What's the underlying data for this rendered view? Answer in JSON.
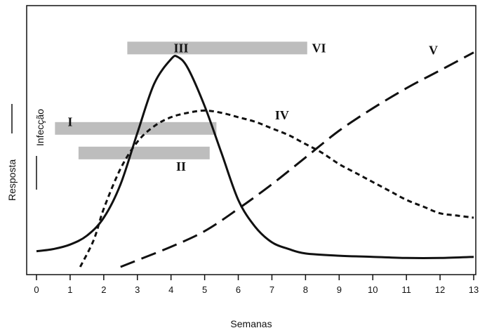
{
  "chart_data": {
    "type": "line",
    "xlabel": "Semanas",
    "ylabel": "Resposta",
    "xlim": [
      0,
      13
    ],
    "x_ticks": [
      0,
      1,
      2,
      3,
      4,
      5,
      6,
      7,
      8,
      9,
      10,
      11,
      12,
      13
    ],
    "grid": false,
    "side_label": "Infecção",
    "bars": [
      {
        "name": "I",
        "x_start": 0.55,
        "x_end": 5.35,
        "level": 0.62
      },
      {
        "name": "II",
        "x_start": 1.25,
        "x_end": 5.15,
        "level": 0.51
      },
      {
        "name": "VI",
        "x_start": 2.7,
        "x_end": 8.05,
        "level": 0.98
      }
    ],
    "series": [
      {
        "name": "III",
        "style": "solid",
        "points": [
          [
            0,
            0.07
          ],
          [
            0.5,
            0.08
          ],
          [
            1,
            0.1
          ],
          [
            1.5,
            0.14
          ],
          [
            2,
            0.22
          ],
          [
            2.5,
            0.37
          ],
          [
            3,
            0.6
          ],
          [
            3.5,
            0.82
          ],
          [
            4,
            0.93
          ],
          [
            4.2,
            0.94
          ],
          [
            4.5,
            0.89
          ],
          [
            5,
            0.72
          ],
          [
            5.5,
            0.51
          ],
          [
            6,
            0.3
          ],
          [
            6.5,
            0.18
          ],
          [
            7,
            0.11
          ],
          [
            7.5,
            0.08
          ],
          [
            8,
            0.06
          ],
          [
            9,
            0.05
          ],
          [
            10,
            0.045
          ],
          [
            11,
            0.04
          ],
          [
            12,
            0.04
          ],
          [
            13,
            0.045
          ]
        ]
      },
      {
        "name": "IV",
        "style": "dashed",
        "points": [
          [
            1.3,
            0.0
          ],
          [
            1.7,
            0.12
          ],
          [
            2,
            0.26
          ],
          [
            2.5,
            0.44
          ],
          [
            3,
            0.56
          ],
          [
            3.5,
            0.63
          ],
          [
            4,
            0.67
          ],
          [
            4.5,
            0.69
          ],
          [
            5,
            0.7
          ],
          [
            5.5,
            0.69
          ],
          [
            6,
            0.67
          ],
          [
            6.5,
            0.65
          ],
          [
            7,
            0.62
          ],
          [
            7.5,
            0.59
          ],
          [
            8,
            0.55
          ],
          [
            8.5,
            0.51
          ],
          [
            9,
            0.46
          ],
          [
            9.5,
            0.42
          ],
          [
            10,
            0.38
          ],
          [
            10.5,
            0.34
          ],
          [
            11,
            0.3
          ],
          [
            11.5,
            0.27
          ],
          [
            12,
            0.24
          ],
          [
            12.5,
            0.23
          ],
          [
            13,
            0.22
          ]
        ]
      },
      {
        "name": "V",
        "style": "long-dashed",
        "points": [
          [
            2.5,
            0.0
          ],
          [
            3,
            0.03
          ],
          [
            4,
            0.09
          ],
          [
            5,
            0.16
          ],
          [
            6,
            0.26
          ],
          [
            7,
            0.37
          ],
          [
            8,
            0.49
          ],
          [
            9,
            0.61
          ],
          [
            10,
            0.71
          ],
          [
            11,
            0.8
          ],
          [
            12,
            0.88
          ],
          [
            13,
            0.96
          ]
        ]
      }
    ],
    "label_positions": {
      "I": [
        1.0,
        0.65
      ],
      "II": [
        4.3,
        0.45
      ],
      "III": [
        4.3,
        0.98
      ],
      "IV": [
        7.3,
        0.68
      ],
      "V": [
        11.8,
        0.97
      ],
      "VI": [
        8.4,
        0.98
      ]
    }
  }
}
